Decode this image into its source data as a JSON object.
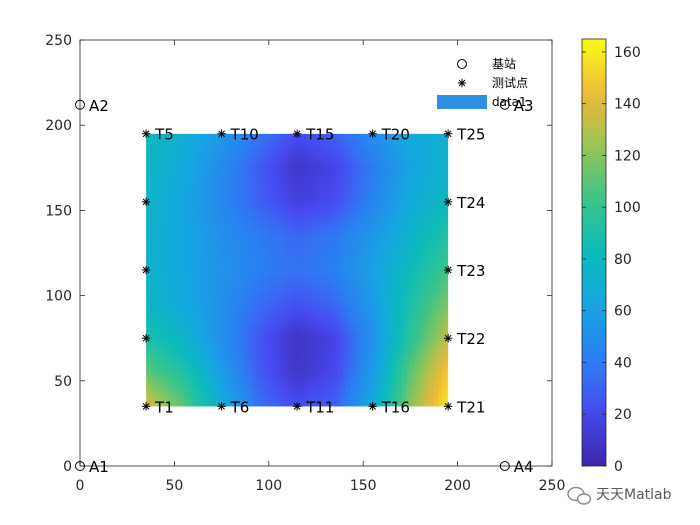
{
  "chart_data": {
    "type": "heatmap",
    "title": "",
    "xlabel": "",
    "ylabel": "",
    "xlim": [
      0,
      250
    ],
    "ylim": [
      0,
      250
    ],
    "x_ticks": [
      0,
      50,
      100,
      150,
      200,
      250
    ],
    "y_ticks": [
      0,
      50,
      100,
      150,
      200,
      250
    ],
    "heatmap_extent": {
      "x": [
        35,
        195
      ],
      "y": [
        35,
        195
      ]
    },
    "heatmap_grid": {
      "x": [
        35,
        55,
        75,
        95,
        115,
        135,
        155,
        175,
        195
      ],
      "y": [
        195,
        175,
        155,
        135,
        115,
        95,
        75,
        55,
        35
      ],
      "values": [
        [
          80,
          70,
          55,
          38,
          22,
          30,
          48,
          66,
          72
        ],
        [
          78,
          66,
          48,
          28,
          10,
          18,
          40,
          62,
          74
        ],
        [
          76,
          64,
          46,
          30,
          16,
          22,
          44,
          66,
          80
        ],
        [
          74,
          64,
          50,
          40,
          32,
          38,
          54,
          74,
          92
        ],
        [
          74,
          64,
          52,
          42,
          36,
          42,
          60,
          82,
          104
        ],
        [
          78,
          66,
          50,
          34,
          24,
          32,
          56,
          90,
          118
        ],
        [
          90,
          74,
          50,
          26,
          8,
          18,
          50,
          96,
          132
        ],
        [
          112,
          92,
          58,
          28,
          10,
          20,
          56,
          110,
          150
        ],
        [
          140,
          110,
          68,
          36,
          22,
          30,
          66,
          120,
          160
        ]
      ]
    },
    "colorbar": {
      "range": [
        0,
        165
      ],
      "ticks": [
        0,
        20,
        40,
        60,
        80,
        100,
        120,
        140,
        160
      ]
    },
    "base_stations": [
      {
        "label": "A1",
        "x": 0,
        "y": 0
      },
      {
        "label": "A2",
        "x": 0,
        "y": 212
      },
      {
        "label": "A3",
        "x": 225,
        "y": 212
      },
      {
        "label": "A4",
        "x": 225,
        "y": 0
      }
    ],
    "test_points": [
      {
        "label": "T1",
        "x": 35,
        "y": 35
      },
      {
        "label": "T5",
        "x": 35,
        "y": 195
      },
      {
        "label": "T6",
        "x": 75,
        "y": 35
      },
      {
        "label": "T10",
        "x": 75,
        "y": 195
      },
      {
        "label": "T11",
        "x": 115,
        "y": 35
      },
      {
        "label": "T15",
        "x": 115,
        "y": 195
      },
      {
        "label": "T16",
        "x": 155,
        "y": 35
      },
      {
        "label": "T20",
        "x": 155,
        "y": 195
      },
      {
        "label": "T21",
        "x": 195,
        "y": 35
      },
      {
        "label": "T22",
        "x": 195,
        "y": 75
      },
      {
        "label": "T23",
        "x": 195,
        "y": 115
      },
      {
        "label": "T24",
        "x": 195,
        "y": 155
      },
      {
        "label": "T25",
        "x": 195,
        "y": 195
      },
      {
        "label": "",
        "x": 35,
        "y": 75
      },
      {
        "label": "",
        "x": 35,
        "y": 115
      },
      {
        "label": "",
        "x": 35,
        "y": 155
      }
    ],
    "legend": {
      "position": "top-right",
      "entries": [
        {
          "name": "基站",
          "marker": "circle"
        },
        {
          "name": "测试点",
          "marker": "asterisk"
        },
        {
          "name": "data1",
          "marker": "patch"
        }
      ]
    },
    "colormap": "parula",
    "grid": false
  },
  "watermark": {
    "text": "天天Matlab",
    "icon": "wechat-icon"
  },
  "colors": {
    "marker": "#000000",
    "legend_patch": "#2F8FE3",
    "axis": "#262626"
  }
}
